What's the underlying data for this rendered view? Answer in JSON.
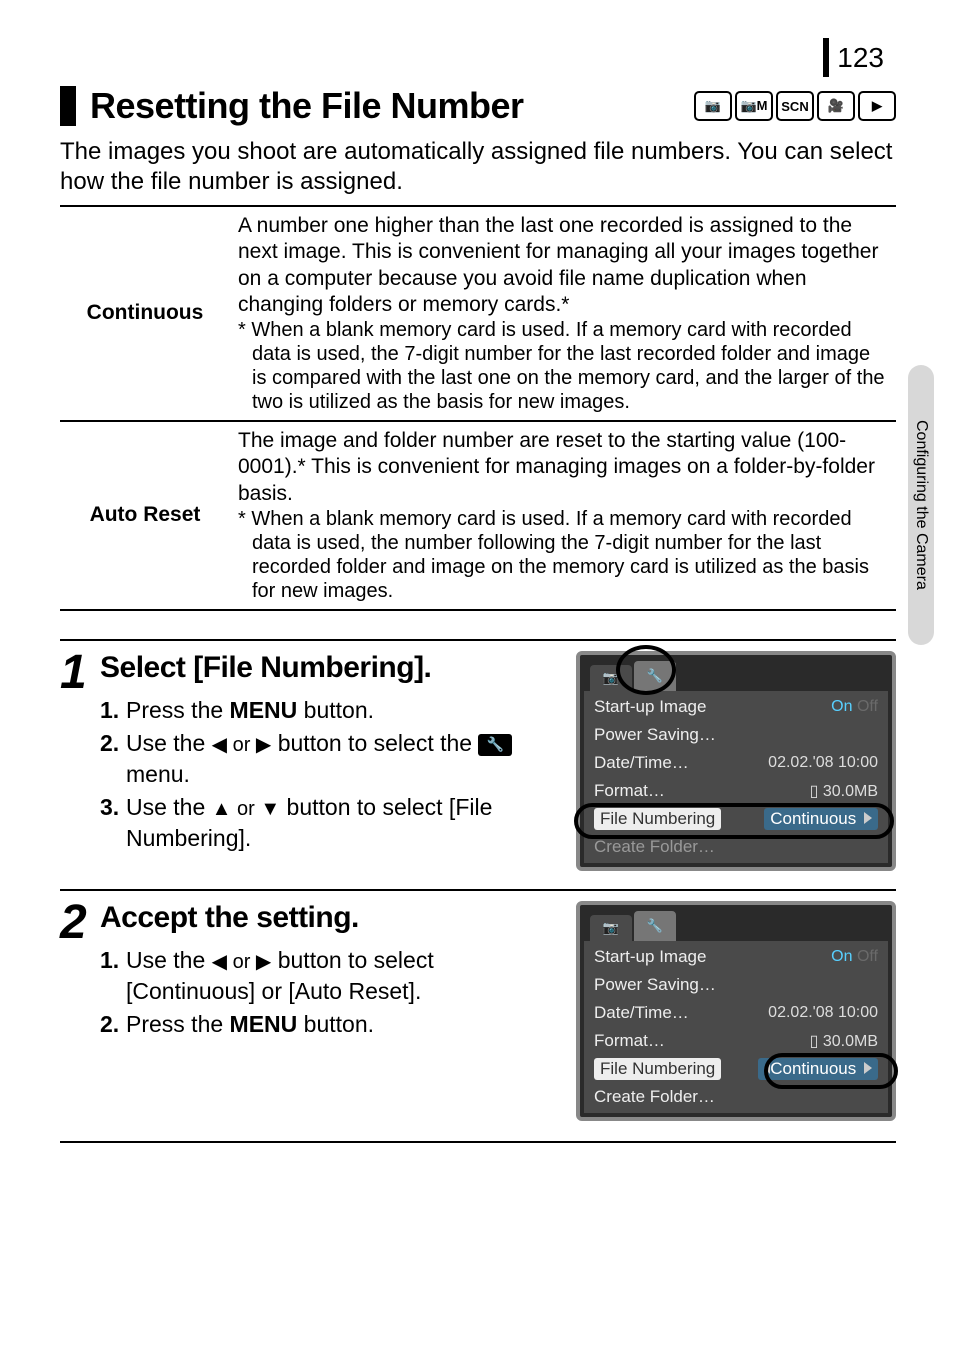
{
  "page_number": "123",
  "side_tab": "Configuring the Camera",
  "title": "Resetting the File Number",
  "mode_icons": [
    "📷",
    "📷M",
    "SCN",
    "🎥",
    "▶"
  ],
  "intro": "The images you shoot are automatically assigned file numbers. You can select how the file number is assigned.",
  "table": {
    "rows": [
      {
        "label": "Continuous",
        "body": "A number one higher than the last one recorded is assigned to the next image. This is convenient for managing all your images together on a computer because you avoid file name duplication when changing folders or memory cards.*",
        "footnote": "* When a blank memory card is used. If a memory card with recorded data is used, the 7-digit number for the last recorded folder and image is compared with the last one on the memory card, and the larger of the two is utilized as the basis for new images."
      },
      {
        "label": "Auto Reset",
        "body": "The image and folder number are reset to the starting value (100-0001).* This is convenient for managing images on a folder-by-folder basis.",
        "footnote": "* When a blank memory card is used. If a memory card with recorded data is used, the number following the 7-digit number for the last recorded folder and image on the memory card is utilized as the basis for new images."
      }
    ]
  },
  "steps": [
    {
      "num": "1",
      "title": "Select [File Numbering].",
      "items": [
        {
          "n": "1.",
          "pre": "Press the ",
          "bold": "MENU",
          "post": " button."
        },
        {
          "n": "2.",
          "pre": "Use the ",
          "arrows": "◀ or ▶",
          "post": " button to select the ",
          "icon": true,
          "post2": " menu."
        },
        {
          "n": "3.",
          "pre": "Use the ",
          "arrows": "▲ or ▼",
          "post": " button to select [File Numbering]."
        }
      ]
    },
    {
      "num": "2",
      "title": "Accept the setting.",
      "items": [
        {
          "n": "1.",
          "pre": "Use the ",
          "arrows": "◀ or ▶",
          "post": " button to select [Continuous] or [Auto Reset]."
        },
        {
          "n": "2.",
          "pre": "Press the ",
          "bold": "MENU",
          "post": " button."
        }
      ]
    }
  ],
  "lcd": {
    "tabs": [
      "📷",
      "🔧"
    ],
    "rows": [
      {
        "label": "Start-up Image",
        "on": "On",
        "off": "Off"
      },
      {
        "label": "Power Saving…",
        "val": ""
      },
      {
        "label": "Date/Time…",
        "val": "02.02.'08 10:00"
      },
      {
        "label": "Format…",
        "val": "▯  30.0MB"
      },
      {
        "label": "File Numbering",
        "val": "Continuous",
        "hl": true
      },
      {
        "label": "Create Folder…",
        "val": "",
        "dim": true
      }
    ],
    "rows2": [
      {
        "label": "Start-up Image",
        "on": "On",
        "off": "Off"
      },
      {
        "label": "Power Saving…",
        "val": ""
      },
      {
        "label": "Date/Time…",
        "val": "02.02.'08 10:00"
      },
      {
        "label": "Format…",
        "val": "▯  30.0MB"
      },
      {
        "label": "File Numbering",
        "val": "Continuous",
        "hl": true
      },
      {
        "label": "Create Folder…",
        "val": ""
      }
    ]
  }
}
